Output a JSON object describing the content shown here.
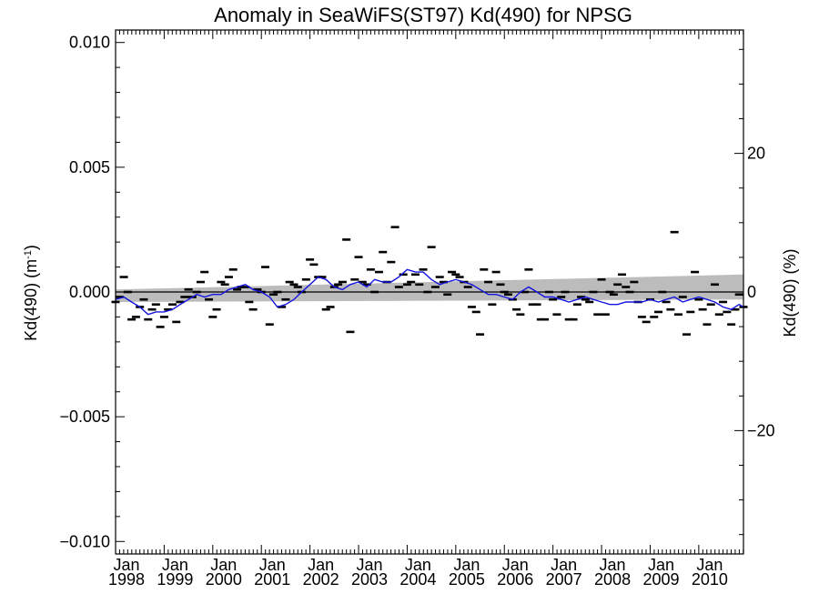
{
  "chart_data": {
    "type": "line",
    "title": "Anomaly in SeaWiFS(ST97) Kd(490) for NPSG",
    "ylabel": "Kd(490) (m",
    "ylabel_superscript": "-1",
    "ylabel_close": ")",
    "ylabel_right": "Kd(490) (%)",
    "xlim": [
      1998.0,
      2010.92
    ],
    "ylim": [
      -0.0105,
      0.0105
    ],
    "ylim_right_percent": [
      -37.8,
      37.8
    ],
    "grid": false,
    "legend": "none",
    "x_ticks": [
      {
        "x": 1998.0,
        "month": "Jan",
        "year": "1998"
      },
      {
        "x": 1999.0,
        "month": "Jan",
        "year": "1999"
      },
      {
        "x": 2000.0,
        "month": "Jan",
        "year": "2000"
      },
      {
        "x": 2001.0,
        "month": "Jan",
        "year": "2001"
      },
      {
        "x": 2002.0,
        "month": "Jan",
        "year": "2002"
      },
      {
        "x": 2003.0,
        "month": "Jan",
        "year": "2003"
      },
      {
        "x": 2004.0,
        "month": "Jan",
        "year": "2004"
      },
      {
        "x": 2005.0,
        "month": "Jan",
        "year": "2005"
      },
      {
        "x": 2006.0,
        "month": "Jan",
        "year": "2006"
      },
      {
        "x": 2007.0,
        "month": "Jan",
        "year": "2007"
      },
      {
        "x": 2008.0,
        "month": "Jan",
        "year": "2008"
      },
      {
        "x": 2009.0,
        "month": "Jan",
        "year": "2009"
      },
      {
        "x": 2010.0,
        "month": "Jan",
        "year": "2010"
      }
    ],
    "y_ticks_left": [
      {
        "value": 0.01,
        "label": "0.010"
      },
      {
        "value": 0.005,
        "label": "0.005"
      },
      {
        "value": 0.0,
        "label": "0.000"
      },
      {
        "value": -0.005,
        "label": "−0.005"
      },
      {
        "value": -0.01,
        "label": "−0.010"
      }
    ],
    "y_ticks_right": [
      {
        "value": 20,
        "label": "20"
      },
      {
        "value": 0,
        "label": "0"
      },
      {
        "value": -20,
        "label": "−20"
      }
    ],
    "trend_band": {
      "x": [
        1998.0,
        2010.92
      ],
      "lower": [
        -0.0004,
        -0.0003
      ],
      "upper": [
        0.0001,
        0.0007
      ]
    },
    "zero_line": 0.0,
    "monthly_anomalies": {
      "x": [
        1998.0,
        1998.08,
        1998.17,
        1998.25,
        1998.33,
        1998.42,
        1998.5,
        1998.58,
        1998.67,
        1998.75,
        1998.83,
        1998.92,
        1999.0,
        1999.08,
        1999.17,
        1999.25,
        1999.33,
        1999.42,
        1999.5,
        1999.58,
        1999.67,
        1999.75,
        1999.83,
        1999.92,
        2000.0,
        2000.08,
        2000.17,
        2000.25,
        2000.33,
        2000.42,
        2000.5,
        2000.58,
        2000.67,
        2000.75,
        2000.83,
        2000.92,
        2001.0,
        2001.08,
        2001.17,
        2001.25,
        2001.33,
        2001.42,
        2001.5,
        2001.58,
        2001.67,
        2001.75,
        2001.83,
        2001.92,
        2002.0,
        2002.08,
        2002.17,
        2002.25,
        2002.33,
        2002.42,
        2002.5,
        2002.58,
        2002.67,
        2002.75,
        2002.83,
        2002.92,
        2003.0,
        2003.08,
        2003.17,
        2003.25,
        2003.33,
        2003.42,
        2003.5,
        2003.58,
        2003.67,
        2003.75,
        2003.83,
        2003.92,
        2004.0,
        2004.08,
        2004.17,
        2004.25,
        2004.33,
        2004.42,
        2004.5,
        2004.58,
        2004.67,
        2004.75,
        2004.83,
        2004.92,
        2005.0,
        2005.08,
        2005.17,
        2005.25,
        2005.33,
        2005.42,
        2005.5,
        2005.58,
        2005.67,
        2005.75,
        2005.83,
        2005.92,
        2006.0,
        2006.08,
        2006.17,
        2006.25,
        2006.33,
        2006.42,
        2006.5,
        2006.58,
        2006.67,
        2006.75,
        2006.83,
        2006.92,
        2007.0,
        2007.08,
        2007.17,
        2007.25,
        2007.33,
        2007.42,
        2007.5,
        2007.58,
        2007.67,
        2007.75,
        2007.83,
        2007.92,
        2008.0,
        2008.08,
        2008.17,
        2008.25,
        2008.33,
        2008.42,
        2008.5,
        2008.58,
        2008.67,
        2008.75,
        2008.83,
        2008.92,
        2009.0,
        2009.08,
        2009.17,
        2009.25,
        2009.33,
        2009.42,
        2009.5,
        2009.58,
        2009.67,
        2009.75,
        2009.83,
        2009.92,
        2010.0,
        2010.08,
        2010.17,
        2010.25,
        2010.33,
        2010.42,
        2010.5,
        2010.58,
        2010.67,
        2010.75,
        2010.83,
        2010.92
      ],
      "y": [
        -0.0004,
        -0.0002,
        0.0006,
        0.0,
        -0.0011,
        -0.001,
        -0.0006,
        -0.0003,
        -0.0011,
        -0.0007,
        -0.0005,
        -0.0014,
        -0.001,
        -0.0007,
        -0.0005,
        -0.0012,
        -0.0004,
        -0.0002,
        0.0001,
        -0.0002,
        0.0,
        0.0004,
        0.0008,
        -0.0003,
        -0.001,
        -0.0007,
        0.0004,
        0.0003,
        0.0006,
        0.0009,
        0.0001,
        0.0002,
        0.0002,
        -0.0004,
        -0.0007,
        0.0001,
        0.0,
        0.001,
        -0.0013,
        -0.0001,
        0.0,
        -0.0006,
        -0.0003,
        0.0004,
        0.0003,
        0.0002,
        0.0,
        0.0005,
        0.0013,
        0.0011,
        0.0006,
        0.0006,
        -0.0007,
        -0.0006,
        0.0002,
        0.0003,
        0.0004,
        0.0021,
        -0.0016,
        0.0005,
        0.0014,
        0.0004,
        0.0003,
        0.0009,
        0.0,
        0.0008,
        0.0016,
        0.0004,
        0.0012,
        0.0026,
        0.0002,
        0.0007,
        0.0003,
        0.0004,
        0.0007,
        0.0003,
        0.0009,
        0.0,
        0.0018,
        0.0002,
        0.0006,
        0.0004,
        -0.0001,
        0.0008,
        0.0007,
        0.0006,
        0.0004,
        0.0002,
        -0.0006,
        -0.0008,
        -0.0017,
        0.0009,
        0.0004,
        -0.0005,
        0.0008,
        0.0003,
        0.0,
        -0.0001,
        -0.0003,
        -0.0007,
        -0.0009,
        0.0,
        0.0009,
        -0.0005,
        -0.0005,
        -0.0011,
        -0.0011,
        0.0,
        -0.0003,
        -0.0009,
        -0.0002,
        0.0,
        -0.0011,
        -0.0011,
        -0.0005,
        -0.0002,
        -0.0003,
        -0.0004,
        0.0,
        -0.0009,
        0.0005,
        -0.0009,
        0.0,
        -0.0001,
        0.0003,
        0.0007,
        0.0002,
        0.0,
        0.0004,
        -0.0004,
        -0.001,
        -0.0012,
        -0.0003,
        -0.001,
        -0.0008,
        0.0,
        -0.0004,
        -0.0007,
        0.0024,
        -0.0009,
        -0.0002,
        -0.0017,
        -0.0008,
        0.0008,
        -0.0003,
        -0.0007,
        -0.0013,
        -0.0005,
        0.0003,
        -0.0009,
        -0.0004,
        -0.0008,
        -0.0013,
        -0.0007,
        -0.0001,
        -0.0006
      ]
    },
    "running_mean": {
      "x": [
        1998.0,
        1998.17,
        1998.33,
        1998.5,
        1998.67,
        1998.83,
        1999.0,
        1999.17,
        1999.33,
        1999.5,
        1999.67,
        1999.83,
        2000.0,
        2000.17,
        2000.33,
        2000.5,
        2000.67,
        2000.83,
        2001.0,
        2001.17,
        2001.33,
        2001.5,
        2001.67,
        2001.83,
        2002.0,
        2002.17,
        2002.33,
        2002.5,
        2002.67,
        2002.83,
        2003.0,
        2003.17,
        2003.33,
        2003.5,
        2003.67,
        2003.83,
        2004.0,
        2004.17,
        2004.33,
        2004.5,
        2004.67,
        2004.83,
        2005.0,
        2005.17,
        2005.33,
        2005.5,
        2005.67,
        2005.83,
        2006.0,
        2006.17,
        2006.33,
        2006.5,
        2006.67,
        2006.83,
        2007.0,
        2007.17,
        2007.33,
        2007.5,
        2007.67,
        2007.83,
        2008.0,
        2008.17,
        2008.33,
        2008.5,
        2008.67,
        2008.83,
        2009.0,
        2009.17,
        2009.33,
        2009.5,
        2009.67,
        2009.83,
        2010.0,
        2010.17,
        2010.33,
        2010.5,
        2010.67,
        2010.83,
        2010.92
      ],
      "y": [
        -0.0003,
        -0.0002,
        -0.0004,
        -0.0006,
        -0.0009,
        -0.0008,
        -0.0008,
        -0.0007,
        -0.0005,
        -0.0003,
        -0.0001,
        -0.0002,
        -0.0001,
        -0.0001,
        0.0001,
        0.0002,
        0.0003,
        0.0001,
        0.0,
        -0.0002,
        -0.0006,
        -0.0005,
        -0.0003,
        0.0,
        0.0003,
        0.0006,
        0.0005,
        0.0002,
        0.0001,
        0.0003,
        0.0004,
        0.0002,
        0.0005,
        0.0004,
        0.0004,
        0.0006,
        0.0009,
        0.0008,
        0.0008,
        0.0005,
        0.0003,
        0.0004,
        0.0005,
        0.0004,
        0.0003,
        0.0001,
        -0.0001,
        -0.0001,
        -0.0002,
        -0.0003,
        0.0,
        0.0002,
        0.0,
        -0.0002,
        -0.0002,
        -0.0003,
        -0.0004,
        -0.0003,
        -0.0002,
        -0.0003,
        -0.0004,
        -0.0005,
        -0.0005,
        -0.0004,
        -0.0004,
        -0.0004,
        -0.0003,
        -0.0004,
        -0.0003,
        -0.0002,
        -0.0004,
        -0.0003,
        -0.0002,
        -0.0003,
        -0.0004,
        -0.0006,
        -0.0007,
        -0.0005,
        -0.0006
      ]
    },
    "colors": {
      "running_mean": "#1414e0",
      "band": "#bcbcbc",
      "markers": "#000000",
      "axes": "#000000"
    }
  }
}
